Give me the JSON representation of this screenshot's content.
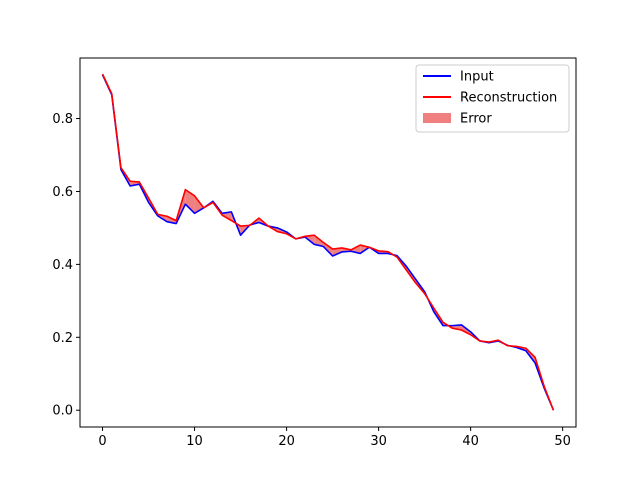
{
  "chart_data": {
    "type": "line",
    "title": "",
    "xlabel": "",
    "ylabel": "",
    "xlim": [
      -2.45,
      51.45
    ],
    "ylim": [
      -0.046,
      0.966
    ],
    "x_ticks": [
      0,
      10,
      20,
      30,
      40,
      50
    ],
    "y_ticks": [
      0.0,
      0.2,
      0.4,
      0.6,
      0.8
    ],
    "x_tick_labels": [
      "0",
      "10",
      "20",
      "30",
      "40",
      "50"
    ],
    "y_tick_labels": [
      "0.0",
      "0.2",
      "0.4",
      "0.6",
      "0.8"
    ],
    "grid": false,
    "legend_position": "top-right",
    "x": [
      0,
      1,
      2,
      3,
      4,
      5,
      6,
      7,
      8,
      9,
      10,
      11,
      12,
      13,
      14,
      15,
      16,
      17,
      18,
      19,
      20,
      21,
      22,
      23,
      24,
      25,
      26,
      27,
      28,
      29,
      30,
      31,
      32,
      33,
      34,
      35,
      36,
      37,
      38,
      39,
      40,
      41,
      42,
      43,
      44,
      45,
      46,
      47,
      48,
      49
    ],
    "series": [
      {
        "name": "Input",
        "color": "#0000ff",
        "values": [
          0.92,
          0.865,
          0.66,
          0.615,
          0.62,
          0.57,
          0.533,
          0.517,
          0.512,
          0.565,
          0.54,
          0.555,
          0.573,
          0.54,
          0.544,
          0.48,
          0.508,
          0.515,
          0.505,
          0.5,
          0.489,
          0.47,
          0.475,
          0.455,
          0.449,
          0.423,
          0.434,
          0.436,
          0.43,
          0.447,
          0.43,
          0.43,
          0.424,
          0.395,
          0.36,
          0.325,
          0.27,
          0.232,
          0.232,
          0.234,
          0.215,
          0.19,
          0.185,
          0.19,
          0.178,
          0.172,
          0.163,
          0.13,
          0.06,
          0.0
        ]
      },
      {
        "name": "Reconstruction",
        "color": "#ff0000",
        "values": [
          0.922,
          0.868,
          0.665,
          0.628,
          0.626,
          0.582,
          0.537,
          0.532,
          0.52,
          0.605,
          0.588,
          0.555,
          0.57,
          0.535,
          0.52,
          0.505,
          0.507,
          0.527,
          0.505,
          0.49,
          0.484,
          0.47,
          0.477,
          0.48,
          0.46,
          0.442,
          0.445,
          0.44,
          0.453,
          0.447,
          0.437,
          0.435,
          0.42,
          0.385,
          0.35,
          0.32,
          0.28,
          0.241,
          0.225,
          0.22,
          0.207,
          0.19,
          0.187,
          0.192,
          0.177,
          0.175,
          0.17,
          0.145,
          0.065,
          0.0
        ]
      }
    ],
    "fill_between": {
      "name": "Error",
      "color": "#f08080",
      "series_a": "Input",
      "series_b": "Reconstruction"
    }
  }
}
